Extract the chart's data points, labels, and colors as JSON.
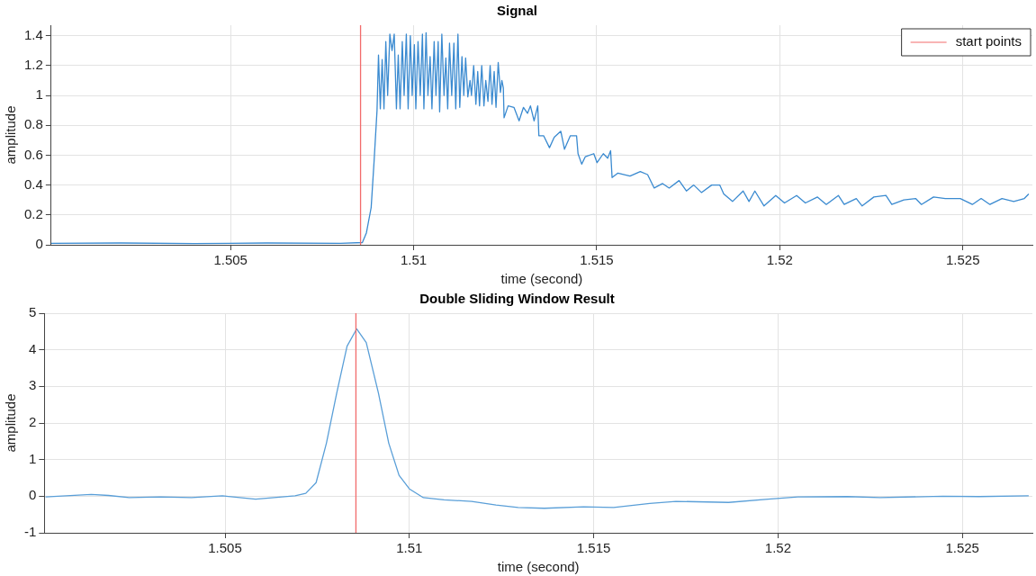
{
  "chart_data": [
    {
      "type": "line",
      "title": "Signal",
      "xlabel": "time (second)",
      "ylabel": "amplitude",
      "xlim": [
        1.5001,
        1.5269
      ],
      "xticks": [
        1.505,
        1.51,
        1.515,
        1.52,
        1.525
      ],
      "ylim": [
        0,
        1.47
      ],
      "yticks": [
        0,
        0.2,
        0.4,
        0.6,
        0.8,
        1,
        1.2,
        1.4
      ],
      "grid": true,
      "legend": "top right",
      "marker": "none",
      "line_style": "solid",
      "series": [
        {
          "color": "#3a8ad0",
          "x": [
            1.5001,
            1.502,
            1.504,
            1.506,
            1.508,
            1.5086,
            1.50871,
            1.50884,
            1.50892,
            1.509,
            1.50904,
            1.50909,
            1.50914,
            1.50919,
            1.50924,
            1.50929,
            1.50935,
            1.50941,
            1.50947,
            1.50953,
            1.50958,
            1.50963,
            1.50969,
            1.50974,
            1.5098,
            1.50985,
            1.50991,
            1.50996,
            1.51002,
            1.51006,
            1.51012,
            1.51018,
            1.51024,
            1.51028,
            1.51034,
            1.51039,
            1.51045,
            1.5105,
            1.51056,
            1.51061,
            1.51067,
            1.51071,
            1.51077,
            1.51083,
            1.51088,
            1.51093,
            1.51098,
            1.51104,
            1.5111,
            1.51115,
            1.51121,
            1.51126,
            1.51132,
            1.51137,
            1.51142,
            1.51148,
            1.51154,
            1.51158,
            1.51164,
            1.5117,
            1.51175,
            1.5118,
            1.51186,
            1.51192,
            1.51197,
            1.51203,
            1.51209,
            1.51214,
            1.5122,
            1.51225,
            1.51231,
            1.51237,
            1.51241,
            1.51245,
            1.51247,
            1.51258,
            1.51274,
            1.51288,
            1.513,
            1.51311,
            1.51319,
            1.51329,
            1.51339,
            1.51342,
            1.51355,
            1.51371,
            1.51384,
            1.51402,
            1.51412,
            1.51428,
            1.51445,
            1.51449,
            1.51459,
            1.51469,
            1.51492,
            1.51501,
            1.51518,
            1.5153,
            1.51538,
            1.51542,
            1.51558,
            1.51591,
            1.51619,
            1.51639,
            1.51657,
            1.5168,
            1.51698,
            1.51725,
            1.51745,
            1.51765,
            1.51786,
            1.51814,
            1.51836,
            1.51847,
            1.51871,
            1.519,
            1.51916,
            1.51932,
            1.51957,
            1.51989,
            1.52013,
            1.52046,
            1.5207,
            1.52103,
            1.52127,
            1.5216,
            1.52176,
            1.52209,
            1.52225,
            1.52257,
            1.5229,
            1.52306,
            1.52339,
            1.52371,
            1.52387,
            1.5242,
            1.52452,
            1.52493,
            1.52526,
            1.5255,
            1.52574,
            1.52607,
            1.52639,
            1.52668,
            1.5268
          ],
          "values": [
            0.01,
            0.012,
            0.008,
            0.012,
            0.01,
            0.015,
            0.08,
            0.25,
            0.56,
            0.9,
            1.27,
            0.91,
            1.24,
            0.91,
            1.36,
            1.0,
            1.41,
            1.3,
            1.41,
            0.91,
            1.27,
            0.91,
            1.36,
            1.0,
            1.41,
            0.91,
            1.4,
            1.0,
            1.34,
            0.91,
            1.36,
            1.0,
            1.41,
            0.91,
            1.42,
            1.0,
            1.26,
            0.91,
            1.36,
            1.0,
            1.36,
            0.89,
            1.41,
            1.0,
            1.25,
            0.91,
            1.35,
            1.0,
            1.35,
            0.91,
            1.41,
            0.92,
            1.26,
            1.0,
            1.25,
            0.99,
            1.1,
            1.0,
            1.2,
            0.94,
            1.16,
            0.93,
            1.2,
            0.93,
            1.1,
            0.96,
            1.2,
            0.94,
            1.16,
            0.92,
            1.22,
            1.02,
            1.1,
            1.05,
            0.85,
            0.93,
            0.92,
            0.83,
            0.92,
            0.88,
            0.93,
            0.83,
            0.93,
            0.73,
            0.73,
            0.65,
            0.72,
            0.76,
            0.64,
            0.73,
            0.73,
            0.61,
            0.54,
            0.59,
            0.61,
            0.55,
            0.61,
            0.58,
            0.63,
            0.45,
            0.48,
            0.46,
            0.49,
            0.47,
            0.38,
            0.41,
            0.38,
            0.43,
            0.36,
            0.4,
            0.35,
            0.4,
            0.4,
            0.34,
            0.29,
            0.36,
            0.29,
            0.36,
            0.26,
            0.33,
            0.28,
            0.33,
            0.28,
            0.32,
            0.27,
            0.33,
            0.27,
            0.31,
            0.26,
            0.32,
            0.33,
            0.27,
            0.3,
            0.31,
            0.27,
            0.32,
            0.31,
            0.31,
            0.27,
            0.31,
            0.27,
            0.31,
            0.29,
            0.31,
            0.34
          ]
        },
        {
          "name": "start points",
          "color": "#f26b6b",
          "x": [
            1.50855,
            1.50855
          ],
          "values": [
            0,
            1.47
          ]
        }
      ]
    },
    {
      "type": "line",
      "title": "Double Sliding Window Result",
      "xlabel": "time (second)",
      "ylabel": "amplitude",
      "xlim": [
        1.5001,
        1.5269
      ],
      "xticks": [
        1.505,
        1.51,
        1.515,
        1.52,
        1.525
      ],
      "ylim": [
        -1,
        5
      ],
      "yticks": [
        -1,
        0,
        1,
        2,
        3,
        4,
        5
      ],
      "grid": true,
      "marker": "none",
      "line_style": "solid",
      "series": [
        {
          "color": "#5a9fd8",
          "x": [
            1.50013,
            1.50137,
            1.50184,
            1.5024,
            1.50325,
            1.50409,
            1.50493,
            1.50583,
            1.5069,
            1.50719,
            1.50747,
            1.50775,
            1.50803,
            1.50831,
            1.50857,
            1.50883,
            1.50916,
            1.50944,
            1.50972,
            1.51,
            1.51038,
            1.51094,
            1.51169,
            1.51235,
            1.51295,
            1.51366,
            1.51473,
            1.51554,
            1.51652,
            1.51723,
            1.51866,
            1.51973,
            1.52054,
            1.52188,
            1.52277,
            1.52447,
            1.52545,
            1.5268
          ],
          "values": [
            -0.02,
            0.05,
            0.02,
            -0.04,
            -0.02,
            -0.04,
            0.01,
            -0.08,
            0.01,
            0.08,
            0.37,
            1.45,
            2.82,
            4.1,
            4.57,
            4.2,
            2.82,
            1.45,
            0.57,
            0.2,
            -0.04,
            -0.1,
            -0.14,
            -0.24,
            -0.31,
            -0.33,
            -0.29,
            -0.31,
            -0.2,
            -0.14,
            -0.17,
            -0.08,
            -0.02,
            -0.01,
            -0.04,
            0,
            -0.01,
            0.01
          ]
        },
        {
          "color": "#f26b6b",
          "x": [
            1.50855,
            1.50855
          ],
          "values": [
            -1,
            5
          ]
        }
      ]
    }
  ]
}
